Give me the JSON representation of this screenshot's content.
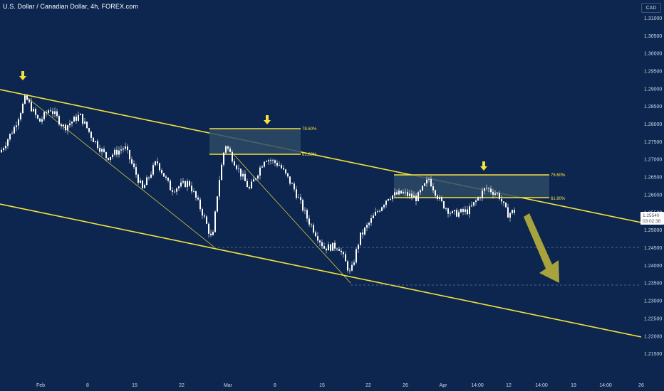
{
  "header": {
    "title": "U.S. Dollar / Canadian Dollar, 4h, FOREX.com",
    "currency": "CAD"
  },
  "colors": {
    "background": "#0c2650",
    "candle": "#ffffff",
    "trendline": "#f5e23b",
    "zone_fill": "#2e4a66",
    "arrow": "#b9b13a",
    "dashed": "#6d7d96"
  },
  "chart_data": {
    "type": "candlestick",
    "title": "U.S. Dollar / Canadian Dollar, 4h, FOREX.com",
    "ylim": [
      1.2105,
      1.3135
    ],
    "y_ticks": [
      "1.31000",
      "1.30500",
      "1.30000",
      "1.29500",
      "1.29000",
      "1.28500",
      "1.28000",
      "1.27500",
      "1.27000",
      "1.26500",
      "1.26000",
      "1.25500",
      "1.25000",
      "1.24500",
      "1.24000",
      "1.23500",
      "1.23000",
      "1.22500",
      "1.22000",
      "1.21500"
    ],
    "x_ticks": [
      "Feb",
      "8",
      "15",
      "22",
      "Mar",
      "8",
      "15",
      "22",
      "26",
      "Apr",
      "14:00",
      "12",
      "14:00",
      "19",
      "14:00",
      "26"
    ],
    "current_price": {
      "price": "1.25540",
      "countdown": "03:02:38"
    },
    "price_path": [
      {
        "t": 0,
        "p": 1.272
      },
      {
        "t": 20,
        "p": 1.279
      },
      {
        "t": 36,
        "p": 1.2875
      },
      {
        "t": 55,
        "p": 1.2805
      },
      {
        "t": 70,
        "p": 1.2845
      },
      {
        "t": 90,
        "p": 1.279
      },
      {
        "t": 112,
        "p": 1.2825
      },
      {
        "t": 130,
        "p": 1.276
      },
      {
        "t": 150,
        "p": 1.2705
      },
      {
        "t": 175,
        "p": 1.2735
      },
      {
        "t": 200,
        "p": 1.2615
      },
      {
        "t": 220,
        "p": 1.2695
      },
      {
        "t": 240,
        "p": 1.2615
      },
      {
        "t": 265,
        "p": 1.2635
      },
      {
        "t": 285,
        "p": 1.2545
      },
      {
        "t": 298,
        "p": 1.2468
      },
      {
        "t": 306,
        "p": 1.262
      },
      {
        "t": 316,
        "p": 1.2745
      },
      {
        "t": 335,
        "p": 1.267
      },
      {
        "t": 350,
        "p": 1.2615
      },
      {
        "t": 372,
        "p": 1.2705
      },
      {
        "t": 392,
        "p": 1.2685
      },
      {
        "t": 412,
        "p": 1.262
      },
      {
        "t": 432,
        "p": 1.253
      },
      {
        "t": 455,
        "p": 1.245
      },
      {
        "t": 475,
        "p": 1.2455
      },
      {
        "t": 492,
        "p": 1.2375
      },
      {
        "t": 505,
        "p": 1.248
      },
      {
        "t": 525,
        "p": 1.254
      },
      {
        "t": 545,
        "p": 1.2595
      },
      {
        "t": 565,
        "p": 1.2605
      },
      {
        "t": 585,
        "p": 1.259
      },
      {
        "t": 602,
        "p": 1.2645
      },
      {
        "t": 618,
        "p": 1.258
      },
      {
        "t": 635,
        "p": 1.2545
      },
      {
        "t": 658,
        "p": 1.2555
      },
      {
        "t": 682,
        "p": 1.262
      },
      {
        "t": 700,
        "p": 1.26
      },
      {
        "t": 712,
        "p": 1.2545
      },
      {
        "t": 722,
        "p": 1.2554
      }
    ],
    "fib_zones": [
      {
        "level_top": "78.60%",
        "level_bottom": "61.80%",
        "price_top": 1.2793,
        "price_bottom": 1.2722
      },
      {
        "level_top": "78.60%",
        "level_bottom": "61.80%",
        "price_top": 1.2665,
        "price_bottom": 1.26
      }
    ],
    "support_levels": [
      1.2466,
      1.2362
    ]
  }
}
